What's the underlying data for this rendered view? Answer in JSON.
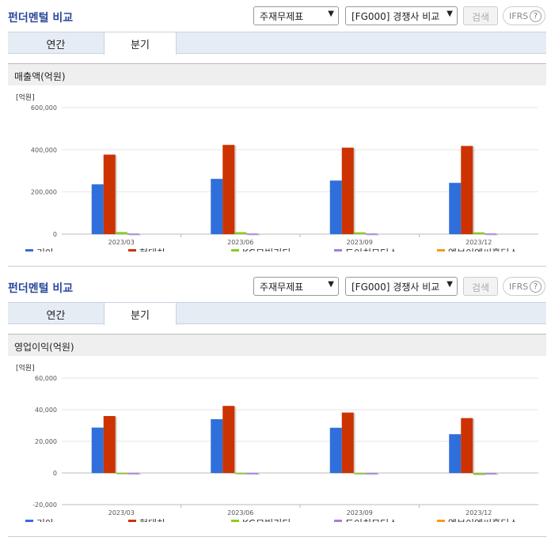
{
  "header": {
    "title": "펀더멘털 비교",
    "select_a": "주재무제표",
    "select_b": "[FG000] 경쟁사 비교",
    "search_label": "검색",
    "ifrs_label": "IFRS",
    "help_label": "?"
  },
  "tabs": [
    "연간",
    "분기"
  ],
  "legend": [
    {
      "name": "기아",
      "color": "#2f6fdc"
    },
    {
      "name": "현대차",
      "color": "#cc3300"
    },
    {
      "name": "KG모빌리티",
      "color": "#8ccc22"
    },
    {
      "name": "도이치모터스",
      "color": "#a87ddc"
    },
    {
      "name": "엘브이엠씨홀딩스",
      "color": "#f59c12"
    }
  ],
  "chart_data": [
    {
      "type": "bar",
      "title": "매출액(억원)",
      "unit_label": "[억원]",
      "categories": [
        "2023/03",
        "2023/06",
        "2023/09",
        "2023/12"
      ],
      "ylim": [
        0,
        600000
      ],
      "yticks": [
        0,
        200000,
        400000,
        600000
      ],
      "ytick_labels": [
        "0",
        "200,000",
        "400,000",
        "600,000"
      ],
      "series": [
        {
          "name": "기아",
          "values": [
            236000,
            262000,
            254000,
            243000
          ]
        },
        {
          "name": "현대차",
          "values": [
            377000,
            423000,
            410000,
            418000
          ]
        },
        {
          "name": "KG모빌리티",
          "values": [
            10000,
            9500,
            8700,
            8500
          ]
        },
        {
          "name": "도이치모터스",
          "values": [
            3000,
            3200,
            3100,
            3300
          ]
        },
        {
          "name": "엘브이엠씨홀딩스",
          "values": [
            0,
            0,
            0,
            0
          ]
        }
      ]
    },
    {
      "type": "bar",
      "title": "영업이익(억원)",
      "unit_label": "[억원]",
      "categories": [
        "2023/03",
        "2023/06",
        "2023/09",
        "2023/12"
      ],
      "ylim": [
        -20000,
        60000
      ],
      "yticks": [
        -20000,
        0,
        20000,
        40000,
        60000
      ],
      "ytick_labels": [
        "-20,000",
        "0",
        "20,000",
        "40,000",
        "60,000"
      ],
      "series": [
        {
          "name": "기아",
          "values": [
            28700,
            34000,
            28600,
            24500
          ]
        },
        {
          "name": "현대차",
          "values": [
            36000,
            42400,
            38200,
            34700
          ]
        },
        {
          "name": "KG모빌리티",
          "values": [
            200,
            150,
            70,
            -1000
          ]
        },
        {
          "name": "도이치모터스",
          "values": [
            100,
            80,
            60,
            40
          ]
        },
        {
          "name": "엘브이엠씨홀딩스",
          "values": [
            0,
            0,
            0,
            0
          ]
        }
      ]
    }
  ]
}
